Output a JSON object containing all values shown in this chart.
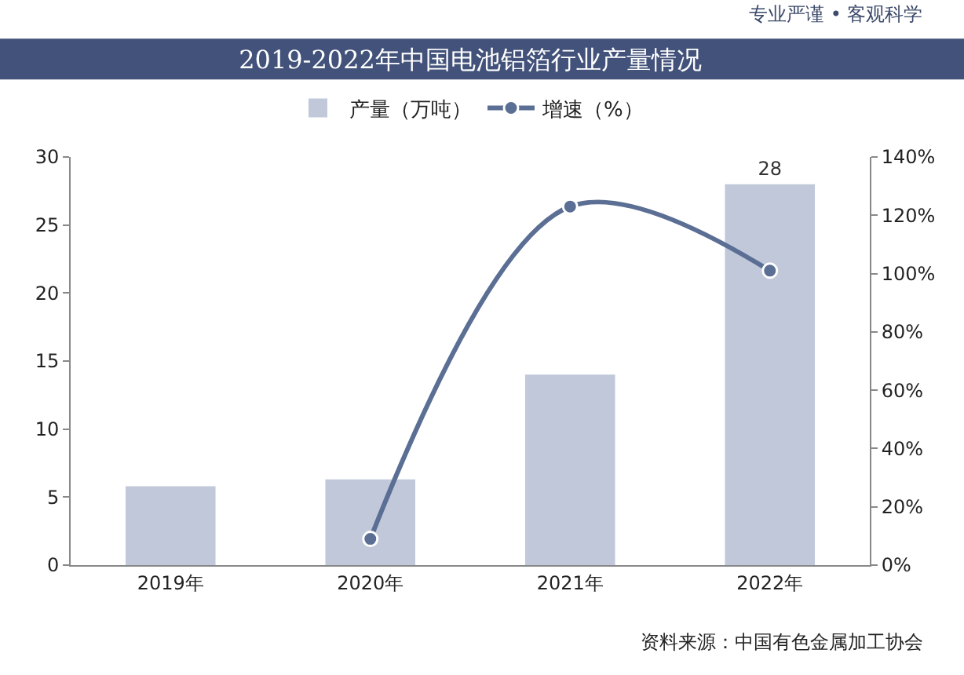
{
  "chart_data": {
    "type": "bar",
    "title": "2019-2022年中国电池铝箔行业产量情况",
    "categories": [
      "2019年",
      "2020年",
      "2021年",
      "2022年"
    ],
    "series": [
      {
        "name": "产量（万吨）",
        "color": "#c0c8da",
        "values": [
          5.8,
          6.3,
          14,
          28
        ],
        "value_labels": [
          null,
          null,
          null,
          "28"
        ]
      },
      {
        "name": "增速（%）",
        "type": "line",
        "axis": "y2",
        "color": "#5b6e94",
        "values": [
          null,
          9,
          123,
          101
        ],
        "marker": "circle"
      }
    ],
    "ylim": [
      0,
      30
    ],
    "yticks": [
      0,
      5,
      10,
      15,
      20,
      25,
      30
    ],
    "y2lim": [
      0,
      140
    ],
    "y2ticks": [
      {
        "value": 0,
        "label": "0%"
      },
      {
        "value": 20,
        "label": "20%"
      },
      {
        "value": 40,
        "label": "40%"
      },
      {
        "value": 60,
        "label": "60%"
      },
      {
        "value": 80,
        "label": "80%"
      },
      {
        "value": 100,
        "label": "100%"
      },
      {
        "value": 120,
        "label": "120%"
      },
      {
        "value": 140,
        "label": "140%"
      }
    ],
    "grid": false,
    "legend": "top",
    "annotations": [
      "专业严谨 • 客观科学",
      "资料来源：中国有色金属加工协会"
    ]
  }
}
